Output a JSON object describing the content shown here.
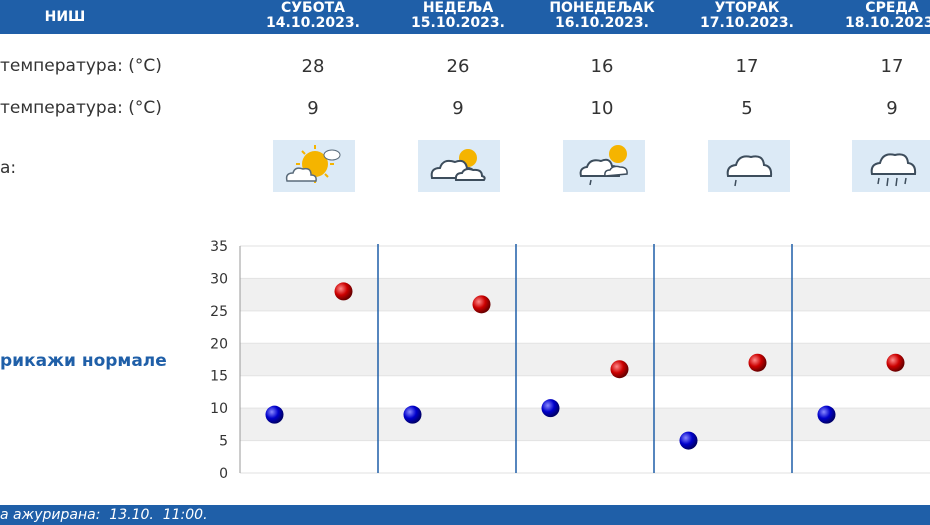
{
  "header": {
    "city": "НИШ",
    "days": [
      {
        "name": "СУБОТА",
        "date": "14.10.2023."
      },
      {
        "name": "НЕДЕЉА",
        "date": "15.10.2023."
      },
      {
        "name": "ПОНЕДЕЉАК",
        "date": "16.10.2023."
      },
      {
        "name": "УТОРАК",
        "date": "17.10.2023."
      },
      {
        "name": "СРЕДА",
        "date": "18.10.2023."
      }
    ]
  },
  "rows": {
    "max_label": "температура: (°C)",
    "min_label": "температура: (°C)",
    "weather_label": "а:",
    "max": [
      "28",
      "26",
      "16",
      "17",
      "17"
    ],
    "min": [
      "9",
      "9",
      "10",
      "5",
      "9"
    ],
    "icons": [
      "sun-cloud-icon",
      "cloud-sun-icon",
      "cloud-sun-rain-icon",
      "cloud-rain-icon",
      "cloud-heavy-rain-icon"
    ]
  },
  "normals_label": "рикажи нормале",
  "footer": "а ажурирана:  13.10.  11:00.",
  "colors": {
    "accent": "#1f5fa8",
    "max_dot": "#cc0000",
    "min_dot": "#0000cc",
    "band": "#f0f0f0",
    "icon_bg": "#dceaf6"
  },
  "chart_data": {
    "type": "scatter",
    "categories": [
      "СУБОТА",
      "НЕДЕЉА",
      "ПОНЕДЕЉАК",
      "УТОРАК",
      "СРЕДА"
    ],
    "ylim": [
      0,
      35
    ],
    "yticks": [
      "0",
      "5",
      "10",
      "15",
      "20",
      "25",
      "30",
      "35"
    ],
    "series": [
      {
        "values": [
          28,
          26,
          16,
          17,
          17
        ],
        "color": "#cc0000"
      },
      {
        "values": [
          9,
          9,
          10,
          5,
          9
        ],
        "color": "#0000cc"
      }
    ],
    "grid": true
  }
}
